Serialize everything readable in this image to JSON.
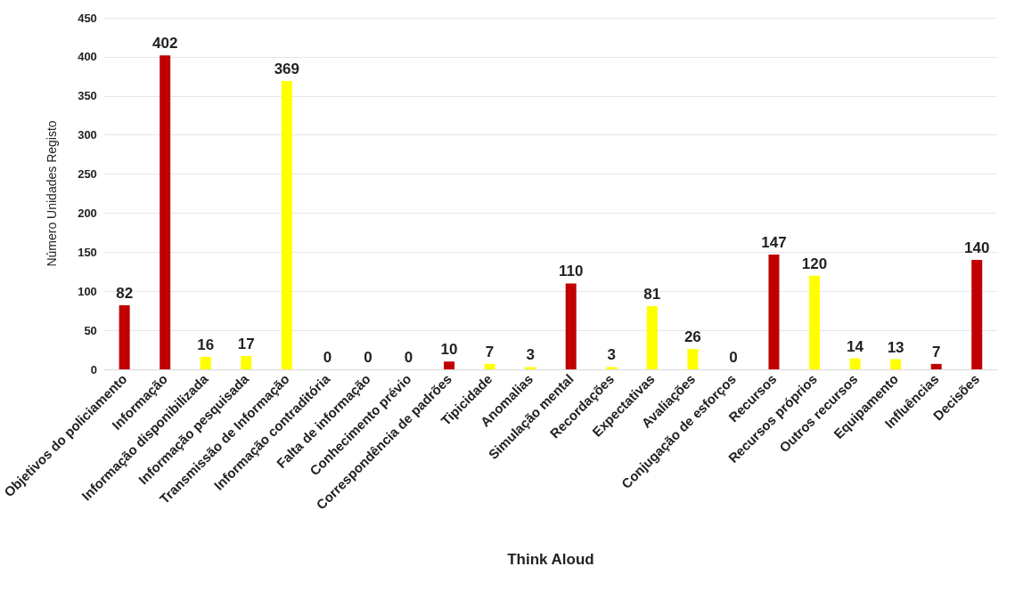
{
  "chart_data": {
    "type": "bar",
    "xlabel": "Think Aloud",
    "ylabel": "Número Unidades Registo",
    "categories": [
      "Objetivos do policiamento",
      "Informação",
      "Informação disponibilizada",
      "Informação pesquisada",
      "Transmissão de Informação",
      "Informação contraditória",
      "Falta de informação",
      "Conhecimento prévio",
      "Correspondência de padrões",
      "Tipicidade",
      "Anomalias",
      "Simulação mental",
      "Recordações",
      "Expectativas",
      "Avaliações",
      "Conjugação de esforços",
      "Recursos",
      "Recursos próprios",
      "Outros recursos",
      "Equipamento",
      "Influências",
      "Decisões"
    ],
    "values": [
      82,
      402,
      16,
      17,
      369,
      0,
      0,
      0,
      10,
      7,
      3,
      110,
      3,
      81,
      26,
      0,
      147,
      120,
      14,
      13,
      7,
      140
    ],
    "colors": [
      "#c00000",
      "#c00000",
      "#ffff00",
      "#ffff00",
      "#ffff00",
      "#ffff00",
      "#ffff00",
      "#ffff00",
      "#c00000",
      "#ffff00",
      "#ffff00",
      "#c00000",
      "#ffff00",
      "#ffff00",
      "#ffff00",
      "#ffff00",
      "#c00000",
      "#ffff00",
      "#ffff00",
      "#ffff00",
      "#c00000",
      "#c00000"
    ],
    "ylim": [
      0,
      450
    ],
    "yticks": [
      0,
      50,
      100,
      150,
      200,
      250,
      300,
      350,
      400,
      450
    ],
    "grid": "y",
    "data_labels": true
  }
}
